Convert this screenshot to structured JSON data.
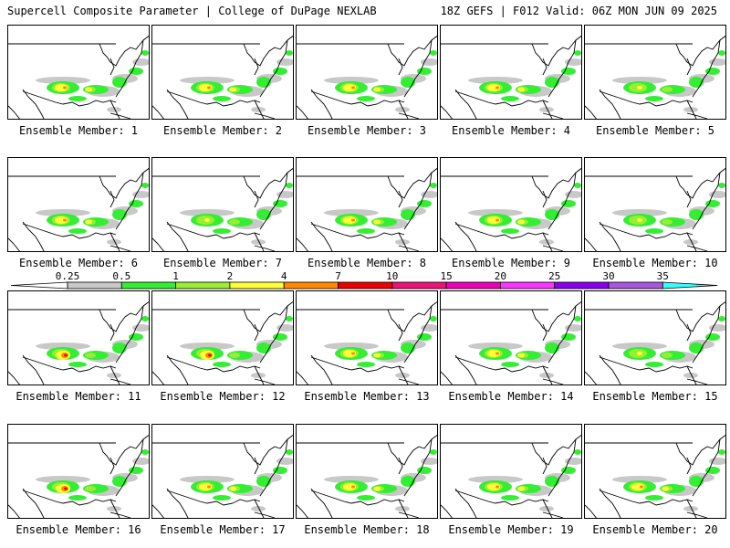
{
  "header": {
    "title": "Supercell Composite Parameter | College of DuPage NEXLAB",
    "run_info": "18Z GEFS | F012 Valid: 06Z MON JUN 09 2025"
  },
  "members": [
    {
      "label": "Ensemble Member: 1",
      "core": "mid"
    },
    {
      "label": "Ensemble Member: 2",
      "core": "mid"
    },
    {
      "label": "Ensemble Member: 3",
      "core": "mid"
    },
    {
      "label": "Ensemble Member: 4",
      "core": "mid"
    },
    {
      "label": "Ensemble Member: 5",
      "core": "weak"
    },
    {
      "label": "Ensemble Member: 6",
      "core": "mid"
    },
    {
      "label": "Ensemble Member: 7",
      "core": "weak"
    },
    {
      "label": "Ensemble Member: 8",
      "core": "mid"
    },
    {
      "label": "Ensemble Member: 9",
      "core": "mid"
    },
    {
      "label": "Ensemble Member: 10",
      "core": "weak"
    },
    {
      "label": "Ensemble Member: 11",
      "core": "strong"
    },
    {
      "label": "Ensemble Member: 12",
      "core": "strong"
    },
    {
      "label": "Ensemble Member: 13",
      "core": "mid"
    },
    {
      "label": "Ensemble Member: 14",
      "core": "mid"
    },
    {
      "label": "Ensemble Member: 15",
      "core": "weak"
    },
    {
      "label": "Ensemble Member: 16",
      "core": "strong"
    },
    {
      "label": "Ensemble Member: 17",
      "core": "mid"
    },
    {
      "label": "Ensemble Member: 18",
      "core": "mid"
    },
    {
      "label": "Ensemble Member: 19",
      "core": "mid"
    },
    {
      "label": "Ensemble Member: 20",
      "core": "mid"
    }
  ],
  "legend": {
    "bins": [
      {
        "from": "0.25",
        "to": "0.5",
        "color": "#c8c8c8"
      },
      {
        "from": "0.5",
        "to": "1",
        "color": "#33ee33"
      },
      {
        "from": "1",
        "to": "2",
        "color": "#99ee33"
      },
      {
        "from": "2",
        "to": "4",
        "color": "#ffff33"
      },
      {
        "from": "4",
        "to": "7",
        "color": "#ff8800"
      },
      {
        "from": "7",
        "to": "10",
        "color": "#ee0000"
      },
      {
        "from": "10",
        "to": "15",
        "color": "#ee1177"
      },
      {
        "from": "15",
        "to": "20",
        "color": "#ee00bb"
      },
      {
        "from": "20",
        "to": "25",
        "color": "#ff33ff"
      },
      {
        "from": "25",
        "to": "30",
        "color": "#8800ee"
      },
      {
        "from": "30",
        "to": "35",
        "color": "#aa55dd"
      }
    ],
    "tick_labels": [
      "0.25",
      "0.5",
      "1",
      "2",
      "4",
      "7",
      "10",
      "15",
      "20",
      "25",
      "30",
      "35"
    ],
    "below_color": "#ffffff",
    "above_color": "#33ffff"
  },
  "colors": {
    "outline": "#000000",
    "gray": "#c8c8c8",
    "green": "#33ee33",
    "lime": "#99ee33",
    "yellow": "#ffff33",
    "orange": "#ff8800",
    "red": "#ee0000"
  }
}
